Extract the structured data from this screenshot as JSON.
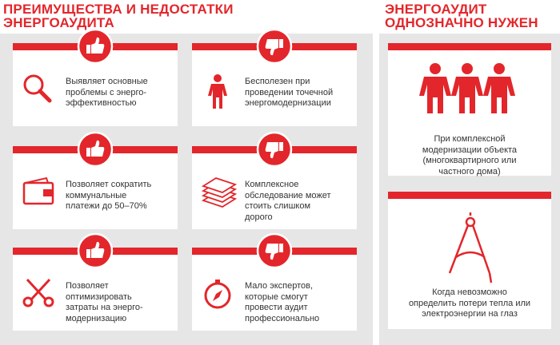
{
  "left": {
    "title_lines": [
      "ПРЕИМУЩЕСТВА И НЕДОСТАТКИ",
      "ЭНЕРГОАУДИТА"
    ],
    "cards": [
      {
        "text_lines": [
          "Выявляет основные",
          "проблемы с энерго-",
          "эффективностью"
        ]
      },
      {
        "text_lines": [
          "Бесполезен при",
          "проведении точечной",
          "энергомодернизации"
        ]
      },
      {
        "text_lines": [
          "Позволяет сократить",
          "коммунальные",
          "платежи до 50–70%"
        ]
      },
      {
        "text_lines": [
          "Комплексное",
          "обследование может",
          "стоить слишком",
          "дорого"
        ]
      },
      {
        "text_lines": [
          "Позволяет",
          "оптимизировать",
          "затраты на энерго-",
          "модернизацию"
        ]
      },
      {
        "text_lines": [
          "Мало экспертов,",
          "которые смогут",
          "провести аудит",
          "профессионально"
        ]
      }
    ]
  },
  "right": {
    "title_lines": [
      "ЭНЕРГОАУДИТ",
      "ОДНОЗНАЧНО НУЖЕН"
    ],
    "cards": [
      {
        "text_lines": [
          "При комплексной",
          "модернизации объекта",
          "(многоквартирного или",
          "частного дома)"
        ]
      },
      {
        "text_lines": [
          "Когда невозможно",
          "определить потери тепла или",
          "электроэнергии на глаз"
        ]
      }
    ]
  }
}
